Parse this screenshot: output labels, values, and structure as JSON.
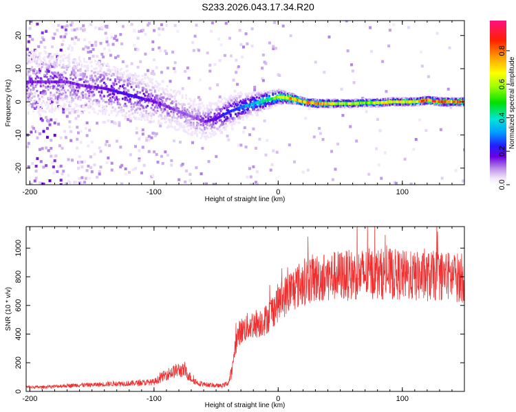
{
  "title": "S233.2026.043.17.34.R20",
  "chart_data": [
    {
      "type": "heatmap",
      "xlabel": "Height of straight line (km)",
      "ylabel": "Frequency (Hz)",
      "xlim": [
        -203,
        150
      ],
      "ylim": [
        -25,
        24.5
      ],
      "x_ticks": [
        -200,
        -100,
        0,
        100
      ],
      "y_ticks": [
        -20,
        -10,
        0,
        10,
        20
      ],
      "colorbar": {
        "label": "Normalized spectral amplitude",
        "range": [
          0,
          0.98
        ],
        "ticks": [
          0.0,
          0.2,
          0.4,
          0.6,
          0.8
        ],
        "colormap": [
          "#ffffff",
          "#d9b8f2",
          "#7a0ae0",
          "#2020ff",
          "#00e5e5",
          "#00e000",
          "#ffff00",
          "#ff9900",
          "#ff0000",
          "#ff1493"
        ]
      },
      "ridge": {
        "x": [
          -170,
          -160,
          -150,
          -140,
          -130,
          -120,
          -110,
          -100,
          -90,
          -80,
          -70,
          -60,
          -50,
          -40,
          -30,
          -20,
          -10,
          0,
          10,
          20,
          30,
          40,
          50,
          60,
          70,
          80,
          90,
          100,
          110,
          120,
          130,
          140,
          150
        ],
        "frequency": [
          6,
          5,
          4.5,
          4,
          3,
          2,
          1,
          0,
          -1.5,
          -3,
          -4.5,
          -6,
          -5,
          -3,
          -1.5,
          -0.5,
          0.5,
          1.5,
          1,
          0,
          -0.5,
          -0.5,
          -0.5,
          -0.5,
          -0.3,
          -0.3,
          0,
          0,
          0,
          0.5,
          0,
          0,
          0
        ],
        "amplitude": [
          0.15,
          0.15,
          0.15,
          0.18,
          0.2,
          0.2,
          0.18,
          0.15,
          0.15,
          0.12,
          0.12,
          0.15,
          0.2,
          0.25,
          0.3,
          0.35,
          0.45,
          0.6,
          0.75,
          0.8,
          0.85,
          0.7,
          0.6,
          0.6,
          0.55,
          0.65,
          0.7,
          0.65,
          0.7,
          0.85,
          0.85,
          0.8,
          0.8
        ]
      }
    },
    {
      "type": "line",
      "xlabel": "Height of straight line (km)",
      "ylabel": "SNR (10 * v/v)",
      "xlim": [
        -203,
        150
      ],
      "ylim": [
        0,
        1150
      ],
      "x_ticks": [
        -200,
        -100,
        0,
        100
      ],
      "y_ticks": [
        0,
        200,
        400,
        600,
        800,
        1000
      ],
      "color": "#f03030",
      "series": [
        {
          "x": [
            -203,
            -190,
            -180,
            -170,
            -160,
            -150,
            -140,
            -130,
            -120,
            -110,
            -100,
            -90,
            -80,
            -75,
            -70,
            -65,
            -60,
            -55,
            -50,
            -45,
            -40,
            -37,
            -35,
            -32,
            -30,
            -25,
            -20,
            -15,
            -10,
            -5,
            0,
            5,
            10,
            15,
            20,
            25,
            30,
            40,
            50,
            60,
            70,
            80,
            90,
            100,
            110,
            120,
            130,
            140,
            150
          ],
          "y": [
            30,
            30,
            35,
            40,
            45,
            45,
            50,
            55,
            55,
            60,
            65,
            120,
            150,
            140,
            90,
            60,
            50,
            45,
            40,
            40,
            60,
            150,
            300,
            400,
            420,
            450,
            470,
            480,
            500,
            560,
            620,
            660,
            700,
            730,
            760,
            780,
            790,
            800,
            810,
            810,
            820,
            820,
            820,
            810,
            800,
            800,
            810,
            800,
            790
          ]
        }
      ]
    }
  ]
}
